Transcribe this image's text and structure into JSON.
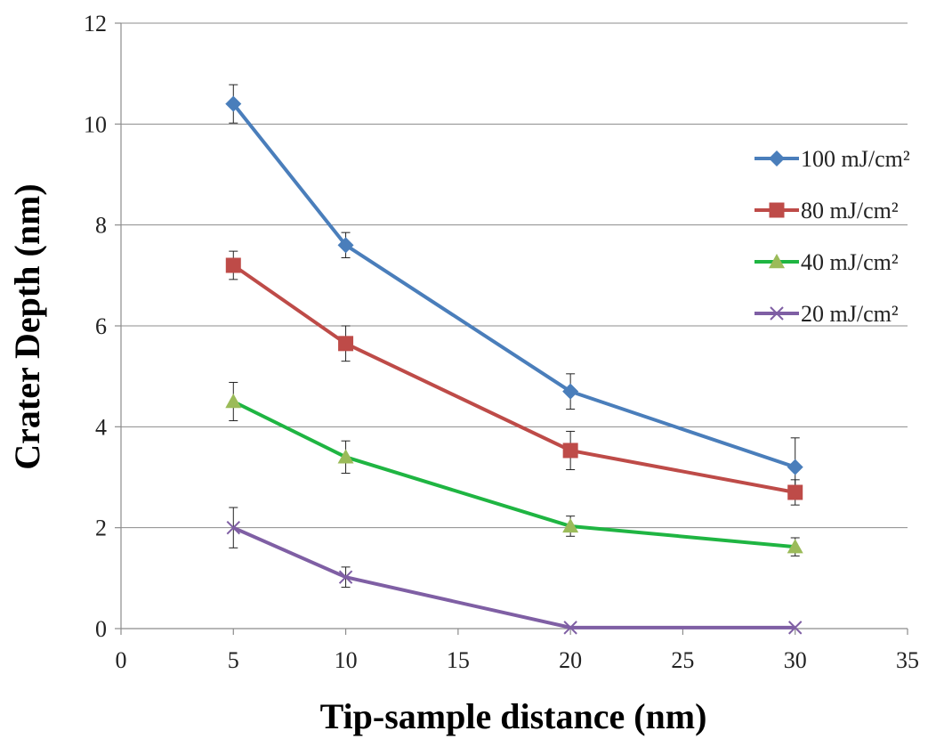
{
  "chart_data": {
    "type": "line",
    "title": "",
    "xlabel": "Tip-sample distance (nm)",
    "ylabel": "Crater Depth (nm)",
    "xlim": [
      0,
      35
    ],
    "ylim": [
      0,
      12
    ],
    "xticks": [
      0,
      5,
      10,
      15,
      20,
      25,
      30,
      35
    ],
    "yticks": [
      0,
      2,
      4,
      6,
      8,
      10,
      12
    ],
    "grid": "horizontal",
    "legend_position": "right",
    "x": [
      5,
      10,
      20,
      30
    ],
    "series": [
      {
        "name": "100 mJ/cm²",
        "values": [
          10.4,
          7.6,
          4.7,
          3.2
        ],
        "errors": [
          0.38,
          0.25,
          0.35,
          0.58
        ],
        "color": "#4a7ebb",
        "marker": "diamond"
      },
      {
        "name": "80 mJ/cm²",
        "values": [
          7.2,
          5.65,
          3.53,
          2.7
        ],
        "errors": [
          0.28,
          0.35,
          0.38,
          0.25
        ],
        "color": "#be4b48",
        "marker": "square"
      },
      {
        "name": "40 mJ/cm²",
        "values": [
          4.5,
          3.4,
          2.03,
          1.62
        ],
        "errors": [
          0.38,
          0.32,
          0.2,
          0.18
        ],
        "color": "#1fb542",
        "marker": "triangle"
      },
      {
        "name": "20 mJ/cm²",
        "values": [
          2.0,
          1.02,
          0.02,
          0.02
        ],
        "errors": [
          0.4,
          0.2,
          0.0,
          0.0
        ],
        "color": "#7f5fa4",
        "marker": "x"
      }
    ]
  }
}
